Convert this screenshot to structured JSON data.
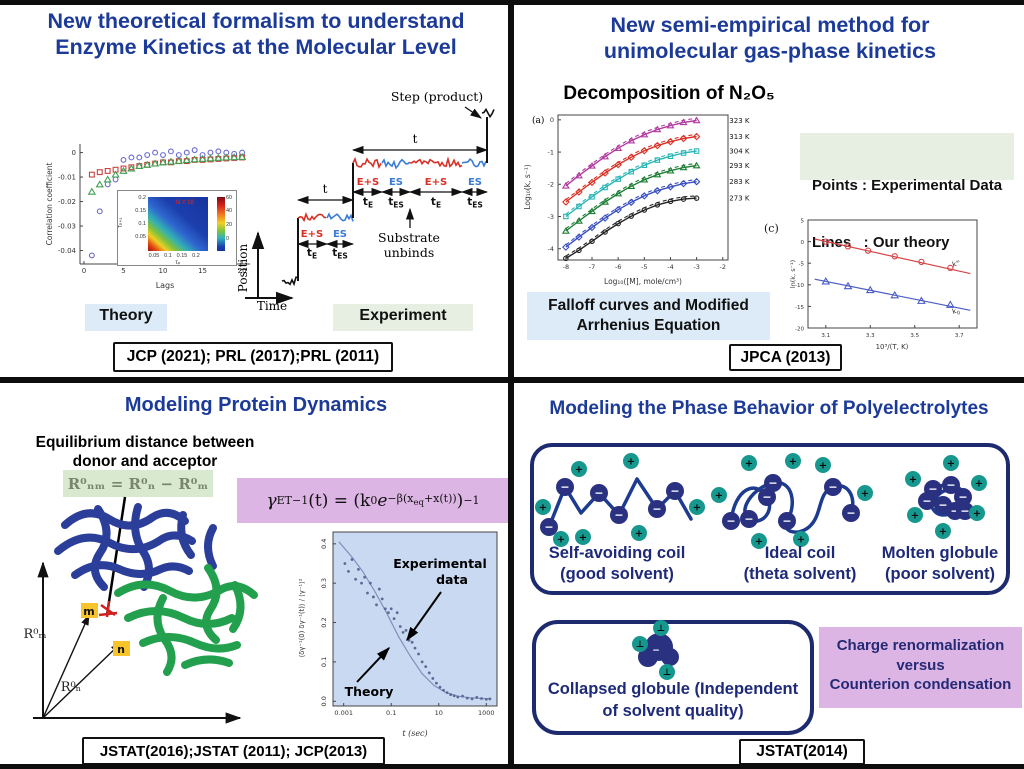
{
  "slide": {
    "colors": {
      "title_blue": "#1c3b99",
      "navy_bead": "#2a3180",
      "teal_bead": "#17988e",
      "light_blue_box": "#dcebf7",
      "light_green_box": "#e7efe2",
      "purple_box": "#dcb5e4",
      "green_eq_box": "#d8e9cf",
      "eps_red": "#d93025",
      "es_blue": "#3a7bd5",
      "outline_navy": "#1d2a6e"
    },
    "tl": {
      "title1": "New theoretical formalism to understand",
      "title2": "Enzyme Kinetics at the Molecular Level",
      "theory": "Theory",
      "experiment": "Experiment",
      "citation": "JCP (2021); PRL (2017);PRL (2011)",
      "stair": {
        "step": "Step (product)",
        "t": "t",
        "eps": "E+S",
        "es": "ES",
        "tsub_base": "t",
        "sub_E": "E",
        "sub_ES": "ES",
        "substrate1": "Substrate",
        "substrate2": "unbinds",
        "position": "Position",
        "time": "Time"
      }
    },
    "tr": {
      "title1": "New semi-empirical method for",
      "title2": "unimolecular gas-phase kinetics",
      "heading": "Decomposition of N₂O₅",
      "legend1": "Points : Experimental Data",
      "legend2": "Lines   : Our theory",
      "box1": "Falloff curves and Modified",
      "box2": "Arrhenius Equation",
      "citation": "JPCA (2013)",
      "panel_a": "(a)",
      "panel_c": "(c)",
      "k_base": "k",
      "k_sup": "∞",
      "k_sub": "0"
    },
    "bl": {
      "title": "Modeling Protein Dynamics",
      "eqdist1": "Equilibrium distance between",
      "eqdist2": "donor and acceptor",
      "eq1": "R⁰ₙₘ = R⁰ₙ − R⁰ₘ",
      "eq2": {
        "p1": "γ",
        "p2": "ET",
        "p3": "−1",
        "p4": "(t) = (k",
        "p5": "0",
        "p6": "e",
        "p7": "−β(x",
        "p8": "eq",
        "p9": "+x(t))",
        "p10": ")",
        "p11": "−1"
      },
      "Rm": "R⁰ₘ",
      "Rn": "R⁰ₙ",
      "m": "m",
      "n": "n",
      "exp1": "Experimental",
      "exp2": "data",
      "theory": "Theory",
      "citation": "JSTAT(2016);JSTAT (2011); JCP(2013)"
    },
    "br": {
      "title": "Modeling the Phase Behavior of Polyelectrolytes",
      "l1a": "Self-avoiding coil",
      "l1b": "(good solvent)",
      "l2a": "Ideal coil",
      "l2b": "(theta solvent)",
      "l3a": "Molten globule",
      "l3b": "(poor solvent)",
      "collapsed1": "Collapsed globule (Independent",
      "collapsed2": "of  solvent quality)",
      "charge1": "Charge renormalization",
      "charge2": "versus",
      "charge3": "Counterion condensation",
      "citation": "JSTAT(2014)",
      "plus": "+",
      "minus": "−",
      "counterion": "⊥"
    }
  },
  "chart_data": [
    {
      "id": "corr",
      "type": "scatter",
      "xlabel": "Lags",
      "ylabel": "Correlation coefficient",
      "xlim": [
        -0.5,
        21
      ],
      "ylim": [
        -0.0455,
        0.0035
      ],
      "xticks": [
        0,
        5,
        10,
        15,
        20
      ],
      "yticks": [
        0,
        -0.01,
        -0.02,
        -0.03,
        -0.04
      ],
      "yticklabels": [
        "0",
        "-0.01",
        "-0.02",
        "-0.03",
        "-0.04"
      ],
      "frame": "lb",
      "x": [
        1,
        2,
        3,
        4,
        5,
        6,
        7,
        8,
        9,
        10,
        11,
        12,
        13,
        14,
        15,
        16,
        17,
        18,
        19,
        20
      ],
      "series": [
        {
          "name": "blue circles",
          "marker": "circle",
          "color": "#6a6ad0",
          "line": false,
          "y": [
            -0.042,
            -0.024,
            -0.013,
            -0.011,
            -0.003,
            -0.002,
            -0.002,
            -0.001,
            0,
            -0.001,
            0.0005,
            -0.001,
            0,
            0.001,
            -0.001,
            0,
            0.0005,
            0,
            -0.0005,
            0
          ]
        },
        {
          "name": "red squares",
          "marker": "square",
          "color": "#c94040",
          "line": false,
          "y": [
            -0.009,
            -0.008,
            -0.0075,
            -0.007,
            -0.0065,
            -0.006,
            -0.0055,
            -0.005,
            -0.0045,
            -0.004,
            -0.004,
            -0.0035,
            -0.0035,
            -0.003,
            -0.003,
            -0.0028,
            -0.0026,
            -0.0024,
            -0.0022,
            -0.002
          ]
        },
        {
          "name": "green triangles",
          "marker": "triangle",
          "color": "#3fa050",
          "line": false,
          "y": [
            -0.016,
            -0.013,
            -0.011,
            -0.009,
            -0.0075,
            -0.0065,
            -0.0055,
            -0.005,
            -0.0045,
            -0.004,
            -0.0037,
            -0.0034,
            -0.0031,
            -0.0028,
            -0.0026,
            -0.0024,
            -0.0022,
            -0.002,
            -0.0019,
            -0.0018
          ]
        }
      ]
    },
    {
      "id": "falloff",
      "type": "line",
      "xlabel": "Log₁₀([M], mole/cm³)",
      "ylabel": "Log₁₀(k, s⁻¹)",
      "xlim": [
        -8.3,
        -1.8
      ],
      "ylim": [
        -4.35,
        0.15
      ],
      "xticks": [
        -8,
        -7,
        -6,
        -5,
        -4,
        -3,
        -2
      ],
      "yticks": [
        0,
        -1,
        -2,
        -3,
        -4
      ],
      "labelx": -1.75,
      "x": [
        -8,
        -7.5,
        -7,
        -6.5,
        -6,
        -5.5,
        -5,
        -4.5,
        -4,
        -3.5,
        -3
      ],
      "series": [
        {
          "name": "323 K experiment",
          "label": "323 K",
          "color": "#b13a9e",
          "marker": "triangle",
          "msize": 2.2,
          "y": [
            -2.05,
            -1.73,
            -1.43,
            -1.14,
            -0.88,
            -0.65,
            -0.46,
            -0.3,
            -0.18,
            -0.08,
            -0.02
          ]
        },
        {
          "name": "323 K theory",
          "color": "#b13a9e",
          "dash": "4,3",
          "width": 1.1,
          "y": [
            -1.98,
            -1.66,
            -1.36,
            -1.07,
            -0.81,
            -0.58,
            -0.39,
            -0.23,
            -0.11,
            -0.01,
            0.05
          ]
        },
        {
          "name": "313 K experiment",
          "label": "313 K",
          "color": "#d93025",
          "marker": "diamond",
          "msize": 2.2,
          "y": [
            -2.55,
            -2.24,
            -1.94,
            -1.65,
            -1.39,
            -1.16,
            -0.96,
            -0.8,
            -0.68,
            -0.58,
            -0.52
          ]
        },
        {
          "name": "313 K theory",
          "color": "#d93025",
          "dash": "4,3",
          "width": 1.1,
          "y": [
            -2.48,
            -2.17,
            -1.87,
            -1.58,
            -1.32,
            -1.09,
            -0.89,
            -0.73,
            -0.61,
            -0.51,
            -0.45
          ]
        },
        {
          "name": "304 K experiment",
          "label": "304 K",
          "color": "#2ab5b5",
          "marker": "square",
          "msize": 2.2,
          "y": [
            -3.0,
            -2.69,
            -2.39,
            -2.1,
            -1.84,
            -1.61,
            -1.41,
            -1.25,
            -1.13,
            -1.03,
            -0.97
          ]
        },
        {
          "name": "304 K theory",
          "color": "#2ab5b5",
          "dash": "4,3",
          "width": 1.1,
          "y": [
            -2.93,
            -2.62,
            -2.32,
            -2.03,
            -1.77,
            -1.54,
            -1.34,
            -1.18,
            -1.06,
            -0.96,
            -0.9
          ]
        },
        {
          "name": "293 K experiment",
          "label": "293 K",
          "color": "#1e7e34",
          "marker": "triangle",
          "msize": 2.2,
          "y": [
            -3.45,
            -3.14,
            -2.84,
            -2.55,
            -2.29,
            -2.06,
            -1.86,
            -1.7,
            -1.58,
            -1.48,
            -1.42
          ]
        },
        {
          "name": "293 K theory",
          "color": "#1e7e34",
          "dash": "4,3",
          "width": 1.1,
          "y": [
            -3.38,
            -3.07,
            -2.77,
            -2.48,
            -2.22,
            -1.99,
            -1.79,
            -1.63,
            -1.51,
            -1.41,
            -1.35
          ]
        },
        {
          "name": "283 K experiment",
          "label": "283 K",
          "color": "#3a4fc1",
          "marker": "diamond",
          "msize": 2.2,
          "y": [
            -3.95,
            -3.64,
            -3.34,
            -3.05,
            -2.79,
            -2.56,
            -2.36,
            -2.2,
            -2.08,
            -1.98,
            -1.92
          ]
        },
        {
          "name": "283 K theory",
          "color": "#3a4fc1",
          "dash": "4,3",
          "width": 1.1,
          "y": [
            -3.88,
            -3.57,
            -3.27,
            -2.98,
            -2.72,
            -2.49,
            -2.29,
            -2.13,
            -2.01,
            -1.91,
            -1.85
          ]
        },
        {
          "name": "273 K experiment",
          "label": "273 K",
          "color": "#222222",
          "marker": "circle",
          "msize": 2.2,
          "y": [
            -4.3,
            -4.05,
            -3.77,
            -3.48,
            -3.22,
            -2.99,
            -2.8,
            -2.64,
            -2.53,
            -2.46,
            -2.43
          ]
        },
        {
          "name": "273 K theory",
          "color": "#222222",
          "dash": "4,3",
          "width": 1.1,
          "y": [
            -4.23,
            -3.98,
            -3.7,
            -3.41,
            -3.15,
            -2.92,
            -2.73,
            -2.57,
            -2.46,
            -2.39,
            -2.36
          ]
        }
      ]
    },
    {
      "id": "arrh",
      "type": "line",
      "xlabel": "10³/(T, K)",
      "ylabel": "ln(k, s⁻¹)",
      "xlim": [
        3.02,
        3.78
      ],
      "ylim": [
        -20,
        5
      ],
      "xticks": [
        3.1,
        3.3,
        3.5,
        3.7
      ],
      "yticks": [
        5,
        0,
        -5,
        -10,
        -15,
        -20
      ],
      "series": [
        {
          "name": "k-infinity theory line",
          "color": "#d64545",
          "width": 1.2,
          "x": [
            3.05,
            3.75
          ],
          "y": [
            0.6,
            -7.4
          ]
        },
        {
          "name": "k-infinity experimental points",
          "color": "#d64545",
          "line": false,
          "marker": "circle",
          "msize": 2.6,
          "x": [
            3.1,
            3.2,
            3.29,
            3.41,
            3.53,
            3.66
          ],
          "y": [
            0,
            -1.1,
            -2.1,
            -3.4,
            -4.7,
            -6.1
          ]
        },
        {
          "name": "k-zero theory line",
          "color": "#4a5bc4",
          "width": 1.2,
          "x": [
            3.05,
            3.75
          ],
          "y": [
            -8.7,
            -15.9
          ]
        },
        {
          "name": "k-zero experimental points",
          "color": "#4a5bc4",
          "line": false,
          "marker": "triangle",
          "msize": 2.6,
          "x": [
            3.1,
            3.2,
            3.3,
            3.41,
            3.53,
            3.66
          ],
          "y": [
            -9.2,
            -10.3,
            -11.2,
            -12.4,
            -13.7,
            -14.6
          ]
        }
      ]
    },
    {
      "id": "decay",
      "type": "scatter",
      "xlabel": "t (sec)",
      "ylabel": "⟨δγ⁻¹(0) δγ⁻¹(t)⟩ / ⟨γ⁻¹⟩²",
      "xscale": "log10",
      "xlim": [
        -3.45,
        3.45
      ],
      "ylim": [
        -0.012,
        0.43
      ],
      "xticks": [
        -3,
        -1,
        1,
        3
      ],
      "xticklabels": [
        "0.001",
        "0.1",
        "10",
        "1000"
      ],
      "yticks": [
        0,
        0.1,
        0.2,
        0.3,
        0.4
      ],
      "yticklabels": [
        "0.0",
        "0.1",
        "0.2",
        "0.3",
        "0.4"
      ],
      "yrot": true,
      "bg": "#c9d9f2",
      "series": [
        {
          "name": "theory line",
          "color": "#8090b8",
          "width": 1.2,
          "x": [
            -3.2,
            -2.7,
            -2.2,
            -1.7,
            -1.2,
            -0.7,
            -0.2,
            0.3,
            0.8,
            1.3,
            1.8,
            2.3,
            2.8,
            3.2
          ],
          "y": [
            0.405,
            0.37,
            0.33,
            0.28,
            0.225,
            0.165,
            0.115,
            0.07,
            0.04,
            0.022,
            0.013,
            0.009,
            0.007,
            0.006
          ]
        },
        {
          "name": "experimental points",
          "color": "#5a6a96",
          "line": false,
          "marker": "dot",
          "x": [
            -2.95,
            -2.8,
            -2.65,
            -2.5,
            -2.38,
            -2.25,
            -2.12,
            -2.0,
            -1.88,
            -1.75,
            -1.62,
            -1.5,
            -1.38,
            -1.25,
            -1.12,
            -1.0,
            -0.88,
            -0.75,
            -0.62,
            -0.5,
            -0.38,
            -0.25,
            -0.12,
            0.0,
            0.15,
            0.3,
            0.45,
            0.6,
            0.75,
            0.9,
            1.05,
            1.2,
            1.35,
            1.5,
            1.65,
            1.8,
            2.0,
            2.2,
            2.4,
            2.6,
            2.8,
            3.0,
            3.15
          ],
          "y": [
            0.35,
            0.33,
            0.36,
            0.31,
            0.335,
            0.3,
            0.315,
            0.275,
            0.3,
            0.265,
            0.245,
            0.285,
            0.26,
            0.235,
            0.225,
            0.235,
            0.21,
            0.225,
            0.19,
            0.175,
            0.18,
            0.155,
            0.15,
            0.135,
            0.12,
            0.1,
            0.088,
            0.072,
            0.058,
            0.046,
            0.036,
            0.028,
            0.022,
            0.017,
            0.014,
            0.011,
            0.013,
            0.008,
            0.006,
            0.01,
            0.007,
            0.005,
            0.006
          ]
        }
      ]
    },
    {
      "id": "inset",
      "type": "heatmap",
      "note": "N = 10",
      "xlabel": "τₚ",
      "ylabel": "τₚ₊₁",
      "xticks": [
        "0.05",
        "0.1",
        "0.15",
        "0.2"
      ],
      "yticks": [
        "0.2",
        "0.15",
        "0.1",
        "0.05"
      ],
      "colorbar_ticks": [
        "60",
        "40",
        "20",
        "0"
      ],
      "description": "high correlation (red, ~60) concentrated at small τₚ and τₚ₊₁ in lower-left corner, decaying diagonally to ~0 (blue) elsewhere"
    }
  ]
}
